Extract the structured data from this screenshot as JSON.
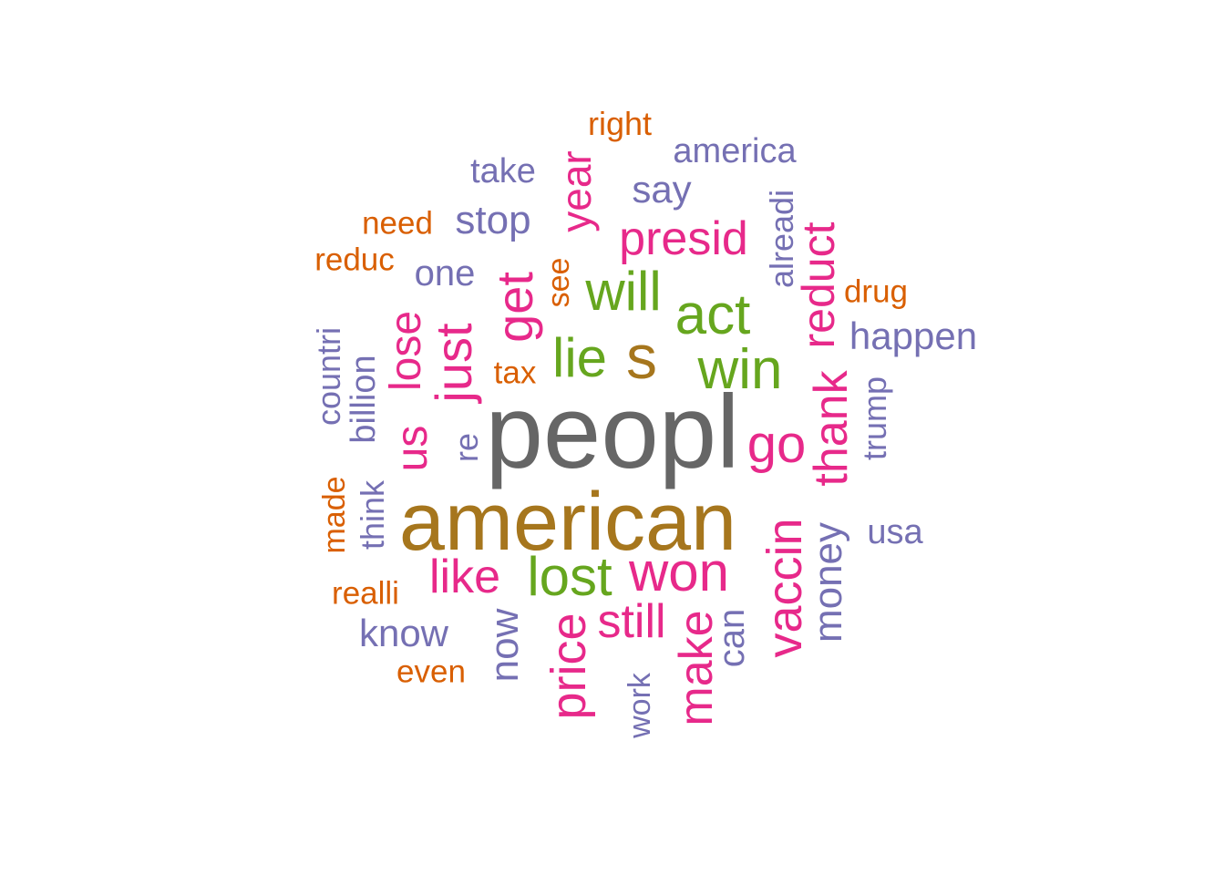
{
  "palette": {
    "gray": "#666666",
    "olive": "#A6761D",
    "green": "#66A61E",
    "magenta": "#E7298A",
    "purple": "#7570B3",
    "orange": "#D95F02"
  },
  "words": [
    {
      "text": "peopl",
      "weight": 100,
      "color": "gray",
      "vertical": false
    },
    {
      "text": "american",
      "weight": 92,
      "color": "olive",
      "vertical": false
    },
    {
      "text": "s",
      "weight": 70,
      "color": "olive",
      "vertical": false
    },
    {
      "text": "win",
      "weight": 62,
      "color": "green",
      "vertical": false
    },
    {
      "text": "act",
      "weight": 62,
      "color": "green",
      "vertical": false
    },
    {
      "text": "lie",
      "weight": 62,
      "color": "green",
      "vertical": false
    },
    {
      "text": "will",
      "weight": 62,
      "color": "green",
      "vertical": false
    },
    {
      "text": "lost",
      "weight": 62,
      "color": "green",
      "vertical": false
    },
    {
      "text": "won",
      "weight": 62,
      "color": "magenta",
      "vertical": false
    },
    {
      "text": "go",
      "weight": 58,
      "color": "magenta",
      "vertical": false
    },
    {
      "text": "get",
      "weight": 58,
      "color": "magenta",
      "vertical": true
    },
    {
      "text": "just",
      "weight": 56,
      "color": "magenta",
      "vertical": true
    },
    {
      "text": "presid",
      "weight": 52,
      "color": "magenta",
      "vertical": false
    },
    {
      "text": "like",
      "weight": 52,
      "color": "magenta",
      "vertical": false
    },
    {
      "text": "still",
      "weight": 52,
      "color": "magenta",
      "vertical": false
    },
    {
      "text": "price",
      "weight": 54,
      "color": "magenta",
      "vertical": true
    },
    {
      "text": "make",
      "weight": 52,
      "color": "magenta",
      "vertical": true
    },
    {
      "text": "vaccin",
      "weight": 54,
      "color": "magenta",
      "vertical": true
    },
    {
      "text": "thank",
      "weight": 52,
      "color": "magenta",
      "vertical": true
    },
    {
      "text": "reduct",
      "weight": 50,
      "color": "magenta",
      "vertical": true
    },
    {
      "text": "year",
      "weight": 48,
      "color": "magenta",
      "vertical": true
    },
    {
      "text": "lose",
      "weight": 50,
      "color": "magenta",
      "vertical": true
    },
    {
      "text": "us",
      "weight": 50,
      "color": "magenta",
      "vertical": true
    },
    {
      "text": "money",
      "weight": 46,
      "color": "purple",
      "vertical": true
    },
    {
      "text": "now",
      "weight": 44,
      "color": "purple",
      "vertical": true
    },
    {
      "text": "stop",
      "weight": 44,
      "color": "purple",
      "vertical": false
    },
    {
      "text": "happen",
      "weight": 42,
      "color": "purple",
      "vertical": false
    },
    {
      "text": "say",
      "weight": 42,
      "color": "purple",
      "vertical": false
    },
    {
      "text": "know",
      "weight": 42,
      "color": "purple",
      "vertical": false
    },
    {
      "text": "one",
      "weight": 40,
      "color": "purple",
      "vertical": false
    },
    {
      "text": "can",
      "weight": 40,
      "color": "purple",
      "vertical": true
    },
    {
      "text": "usa",
      "weight": 38,
      "color": "purple",
      "vertical": false
    },
    {
      "text": "america",
      "weight": 38,
      "color": "purple",
      "vertical": false
    },
    {
      "text": "take",
      "weight": 38,
      "color": "purple",
      "vertical": false
    },
    {
      "text": "billion",
      "weight": 38,
      "color": "purple",
      "vertical": true
    },
    {
      "text": "trump",
      "weight": 36,
      "color": "purple",
      "vertical": true
    },
    {
      "text": "alreadi",
      "weight": 36,
      "color": "purple",
      "vertical": true
    },
    {
      "text": "countri",
      "weight": 36,
      "color": "purple",
      "vertical": true
    },
    {
      "text": "think",
      "weight": 36,
      "color": "purple",
      "vertical": true
    },
    {
      "text": "re",
      "weight": 36,
      "color": "purple",
      "vertical": true
    },
    {
      "text": "work",
      "weight": 34,
      "color": "purple",
      "vertical": true
    },
    {
      "text": "right",
      "weight": 36,
      "color": "orange",
      "vertical": false
    },
    {
      "text": "need",
      "weight": 35,
      "color": "orange",
      "vertical": false
    },
    {
      "text": "reduc",
      "weight": 35,
      "color": "orange",
      "vertical": false
    },
    {
      "text": "drug",
      "weight": 35,
      "color": "orange",
      "vertical": false
    },
    {
      "text": "realli",
      "weight": 35,
      "color": "orange",
      "vertical": false
    },
    {
      "text": "even",
      "weight": 35,
      "color": "orange",
      "vertical": false
    },
    {
      "text": "tax",
      "weight": 35,
      "color": "orange",
      "vertical": false
    },
    {
      "text": "see",
      "weight": 34,
      "color": "orange",
      "vertical": true
    },
    {
      "text": "made",
      "weight": 34,
      "color": "orange",
      "vertical": true
    }
  ]
}
